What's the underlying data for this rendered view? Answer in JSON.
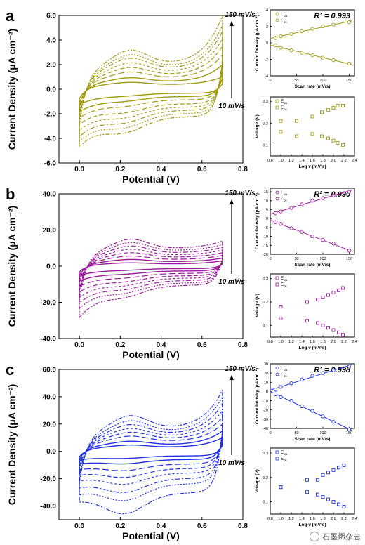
{
  "figure": {
    "panels": [
      {
        "label": "a",
        "color": "#a09a10",
        "main": {
          "ylabel": "Current Density (μA cm⁻²)",
          "xlabel": "Potential (V)",
          "xticks": [
            "0.0",
            "0.2",
            "0.4",
            "0.6",
            "0.8"
          ],
          "yticks": [
            "6.0",
            "4.0",
            "2.0",
            "0.0",
            "-2.0",
            "-4.0",
            "-6.0"
          ],
          "top_note": "150 mV/s",
          "bottom_note": "10 mV/s"
        },
        "scan": {
          "ylabel": "Current Density (μA cm⁻²)",
          "xlabel": "Scan rate (mV/s)",
          "xticks": [
            "0",
            "50",
            "100",
            "150"
          ],
          "yticks": [
            "4",
            "2",
            "0",
            "-2",
            "-4"
          ],
          "legend": [
            "Ipa",
            "Ipc"
          ],
          "r2": "R² = 0.993"
        },
        "log": {
          "ylabel": "Voltage (V)",
          "xlabel": "Log v (mV/s)",
          "xticks": [
            "0.8",
            "1.0",
            "1.2",
            "1.4",
            "1.6",
            "1.8",
            "2.0",
            "2.2",
            "2.4"
          ],
          "yticks": [
            "0.3",
            "0.2",
            "0.1"
          ],
          "legend": [
            "Epa",
            "Epc"
          ]
        }
      },
      {
        "label": "b",
        "color": "#9b1a9b",
        "main": {
          "ylabel": "Current Density (μA cm⁻²)",
          "xlabel": "Potential (V)",
          "xticks": [
            "0.0",
            "0.2",
            "0.4",
            "0.6",
            "0.8"
          ],
          "yticks": [
            "40.0",
            "20.0",
            "0.0",
            "-20.0",
            "-40.0"
          ],
          "top_note": "150 mV/s",
          "bottom_note": "10 mV/s"
        },
        "scan": {
          "ylabel": "Current Density (μA cm⁻²)",
          "xlabel": "Scan rate (mV/s)",
          "xticks": [
            "0",
            "50",
            "100",
            "150"
          ],
          "yticks": [
            "15",
            "10",
            "5",
            "0",
            "-5",
            "-10",
            "-15",
            "-20"
          ],
          "legend": [
            "Ipa",
            "Ipc"
          ],
          "r2": "R² = 0.990"
        },
        "log": {
          "ylabel": "Voltage (V)",
          "xlabel": "Log v (mV/s)",
          "xticks": [
            "0.8",
            "1.0",
            "1.2",
            "1.4",
            "1.6",
            "1.8",
            "2.0",
            "2.2",
            "2.4"
          ],
          "yticks": [
            "0.3",
            "0.2",
            "0.1"
          ],
          "legend": [
            "Epa",
            "Epc"
          ]
        }
      },
      {
        "label": "c",
        "color": "#2030e0",
        "main": {
          "ylabel": "Current Density (μA cm⁻²)",
          "xlabel": "Potential (V)",
          "xticks": [
            "0.0",
            "0.2",
            "0.4",
            "0.6",
            "0.8"
          ],
          "yticks": [
            "60.0",
            "40.0",
            "20.0",
            "0.0",
            "-20.0",
            "-40.0"
          ],
          "top_note": "150 mV/s",
          "bottom_note": "10 mV/s"
        },
        "scan": {
          "ylabel": "Current Density (μA cm⁻²)",
          "xlabel": "Scan rate (mV/s)",
          "xticks": [
            "0",
            "50",
            "100",
            "150"
          ],
          "yticks": [
            "30",
            "20",
            "10",
            "0",
            "-10",
            "-20",
            "-30",
            "-40"
          ],
          "legend": [
            "Ipa",
            "Ipc"
          ],
          "r2": "R² = 0.998"
        },
        "log": {
          "ylabel": "Voltage (V)",
          "xlabel": "Log v (mV/s)",
          "xticks": [
            "0.8",
            "1.0",
            "1.2",
            "1.4",
            "1.6",
            "1.8",
            "2.0",
            "2.2",
            "2.4"
          ],
          "yticks": [
            "0.3",
            "0.2",
            "0.1"
          ],
          "legend": [
            "Epa",
            "Epc"
          ]
        }
      }
    ],
    "watermark": "石墨烯杂志"
  },
  "chart_data": [
    {
      "panel": "a",
      "type": "line",
      "title": "",
      "xlabel": "Potential (V)",
      "ylabel": "Current Density (μA cm⁻²)",
      "xlim": [
        -0.1,
        0.8
      ],
      "ylim": [
        -6,
        6
      ],
      "scan_rates": [
        10,
        20,
        40,
        60,
        80,
        100,
        120,
        150
      ],
      "anodic_max": [
        0.6,
        1.0,
        1.5,
        1.9,
        2.3,
        2.7,
        3.0,
        3.4
      ],
      "cathodic_min": [
        -0.5,
        -0.9,
        -1.3,
        -1.8,
        -2.2,
        -2.6,
        -3.0,
        -3.4
      ],
      "vertex_upper": [
        1.0,
        2.0,
        2.8,
        3.5,
        4.1,
        4.7,
        5.2,
        6.0
      ],
      "vertex_lower": [
        -1.2,
        -1.8,
        -2.3,
        -2.8,
        -3.3,
        -3.8,
        -4.2,
        -4.6
      ]
    },
    {
      "panel": "a-inset-scan",
      "type": "scatter",
      "xlabel": "Scan rate (mV/s)",
      "ylabel": "Current Density (μA cm⁻²)",
      "xlim": [
        0,
        160
      ],
      "ylim": [
        -4,
        4
      ],
      "series": [
        {
          "name": "Ipa",
          "x": [
            10,
            20,
            40,
            60,
            80,
            100,
            120,
            150
          ],
          "y": [
            0.6,
            0.8,
            1.1,
            1.4,
            1.7,
            2.0,
            2.2,
            2.5
          ]
        },
        {
          "name": "Ipc",
          "x": [
            10,
            20,
            40,
            60,
            80,
            100,
            120,
            150
          ],
          "y": [
            -0.3,
            -0.6,
            -0.9,
            -1.2,
            -1.5,
            -1.8,
            -2.1,
            -2.5
          ]
        }
      ],
      "annotation": "R² = 0.993"
    },
    {
      "panel": "a-inset-log",
      "type": "scatter",
      "xlabel": "Log v (mV/s)",
      "ylabel": "Voltage (V)",
      "xlim": [
        0.8,
        2.4
      ],
      "ylim": [
        0.05,
        0.32
      ],
      "series": [
        {
          "name": "Epa",
          "x": [
            1.0,
            1.3,
            1.6,
            1.78,
            1.9,
            2.0,
            2.08,
            2.18
          ],
          "y": [
            0.21,
            0.21,
            0.23,
            0.25,
            0.26,
            0.27,
            0.28,
            0.28
          ]
        },
        {
          "name": "Epc",
          "x": [
            1.0,
            1.3,
            1.6,
            1.78,
            1.9,
            2.0,
            2.08,
            2.18
          ],
          "y": [
            0.16,
            0.14,
            0.15,
            0.14,
            0.13,
            0.12,
            0.11,
            0.1
          ]
        }
      ]
    },
    {
      "panel": "b",
      "type": "line",
      "title": "",
      "xlabel": "Potential (V)",
      "ylabel": "Current Density (μA cm⁻²)",
      "xlim": [
        -0.1,
        0.8
      ],
      "ylim": [
        -40,
        40
      ],
      "scan_rates": [
        10,
        20,
        40,
        60,
        80,
        100,
        120,
        150
      ],
      "anodic_max": [
        2,
        4,
        6,
        8,
        10,
        12,
        14,
        16
      ],
      "cathodic_min": [
        -2,
        -4,
        -6,
        -8,
        -10,
        -12,
        -14,
        -16
      ],
      "vertex_upper": [
        3,
        4.5,
        6,
        7.5,
        9,
        10.5,
        12,
        14
      ],
      "vertex_lower": [
        -5,
        -8,
        -11,
        -14,
        -17,
        -20,
        -23,
        -28
      ]
    },
    {
      "panel": "b-inset-scan",
      "type": "scatter",
      "xlabel": "Scan rate (mV/s)",
      "ylabel": "Current Density (μA cm⁻²)",
      "xlim": [
        0,
        160
      ],
      "ylim": [
        -20,
        17
      ],
      "series": [
        {
          "name": "Ipa",
          "x": [
            10,
            20,
            40,
            60,
            80,
            100,
            120,
            150
          ],
          "y": [
            3,
            4,
            6,
            8,
            10,
            11.5,
            13,
            15
          ]
        },
        {
          "name": "Ipc",
          "x": [
            10,
            20,
            40,
            60,
            80,
            100,
            120,
            150
          ],
          "y": [
            -2,
            -3,
            -5.5,
            -7.5,
            -10,
            -12,
            -14,
            -18
          ]
        }
      ],
      "annotation": "R² = 0.990"
    },
    {
      "panel": "b-inset-log",
      "type": "scatter",
      "xlabel": "Log v (mV/s)",
      "ylabel": "Voltage (V)",
      "xlim": [
        0.8,
        2.4
      ],
      "ylim": [
        0.05,
        0.32
      ],
      "series": [
        {
          "name": "Epa",
          "x": [
            1.0,
            1.5,
            1.7,
            1.8,
            1.9,
            2.0,
            2.1,
            2.18
          ],
          "y": [
            0.18,
            0.2,
            0.21,
            0.22,
            0.23,
            0.24,
            0.25,
            0.26
          ]
        },
        {
          "name": "Epc",
          "x": [
            1.0,
            1.5,
            1.7,
            1.8,
            1.9,
            2.0,
            2.1,
            2.18
          ],
          "y": [
            0.13,
            0.12,
            0.11,
            0.1,
            0.09,
            0.08,
            0.07,
            0.06
          ]
        }
      ]
    },
    {
      "panel": "c",
      "type": "line",
      "title": "",
      "xlabel": "Potential (V)",
      "ylabel": "Current Density (μA cm⁻²)",
      "xlim": [
        -0.1,
        0.8
      ],
      "ylim": [
        -50,
        60
      ],
      "scan_rates": [
        10,
        20,
        40,
        60,
        80,
        100,
        120,
        150
      ],
      "anodic_max": [
        5,
        8,
        12,
        15,
        18,
        21,
        24,
        28
      ],
      "cathodic_min": [
        -5,
        -9,
        -14,
        -19,
        -24,
        -30,
        -36,
        -46
      ],
      "vertex_upper": [
        10,
        15,
        20,
        25,
        30,
        35,
        40,
        45
      ],
      "vertex_lower": [
        -6,
        -9,
        -13,
        -17,
        -21,
        -26,
        -31,
        -36
      ]
    },
    {
      "panel": "c-inset-scan",
      "type": "scatter",
      "xlabel": "Scan rate (mV/s)",
      "ylabel": "Current Density (μA cm⁻²)",
      "xlim": [
        0,
        160
      ],
      "ylim": [
        -40,
        30
      ],
      "series": [
        {
          "name": "Ipa",
          "x": [
            10,
            20,
            40,
            60,
            80,
            100,
            120,
            150
          ],
          "y": [
            2,
            5,
            9,
            13,
            17,
            20,
            23,
            27
          ]
        },
        {
          "name": "Ipc",
          "x": [
            10,
            20,
            40,
            60,
            80,
            100,
            120,
            150
          ],
          "y": [
            -3,
            -6,
            -10,
            -16,
            -21,
            -27,
            -33,
            -41
          ]
        }
      ],
      "annotation": "R² = 0.998"
    },
    {
      "panel": "c-inset-log",
      "type": "scatter",
      "xlabel": "Log v (mV/s)",
      "ylabel": "Voltage (V)",
      "xlim": [
        0.8,
        2.4
      ],
      "ylim": [
        0.05,
        0.32
      ],
      "series": [
        {
          "name": "Epa",
          "x": [
            1.0,
            1.5,
            1.7,
            1.8,
            1.9,
            2.0,
            2.1,
            2.2
          ],
          "y": [
            0.16,
            0.19,
            0.19,
            0.21,
            0.22,
            0.23,
            0.24,
            0.25
          ]
        },
        {
          "name": "Epc",
          "x": [
            1.0,
            1.5,
            1.7,
            1.8,
            1.9,
            2.0,
            2.1,
            2.2
          ],
          "y": [
            0.16,
            0.14,
            0.13,
            0.12,
            0.11,
            0.1,
            0.09,
            0.08
          ]
        }
      ]
    }
  ]
}
